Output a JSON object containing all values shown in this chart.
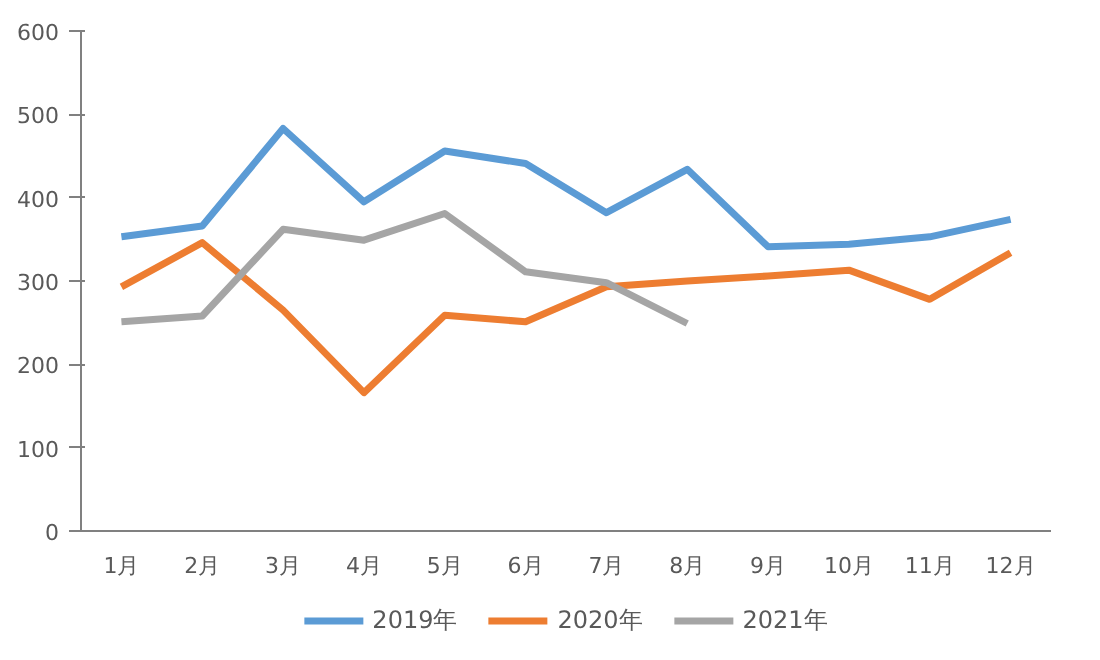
{
  "chart_data": {
    "type": "line",
    "categories": [
      "1月",
      "2月",
      "3月",
      "4月",
      "5月",
      "6月",
      "7月",
      "8月",
      "9月",
      "10月",
      "11月",
      "12月"
    ],
    "series": [
      {
        "name": "2019年",
        "color": "#5b9bd5",
        "values": [
          353,
          366,
          483,
          395,
          456,
          441,
          382,
          434,
          341,
          344,
          353,
          374
        ]
      },
      {
        "name": "2020年",
        "color": "#ed7d31",
        "values": [
          293,
          346,
          265,
          166,
          259,
          251,
          293,
          300,
          306,
          313,
          278,
          334
        ]
      },
      {
        "name": "2021年",
        "color": "#a5a5a5",
        "values": [
          251,
          258,
          362,
          349,
          381,
          311,
          298,
          249,
          null,
          null,
          null,
          null
        ]
      }
    ],
    "ylim": [
      0,
      600
    ],
    "yticks": [
      0,
      100,
      200,
      300,
      400,
      500,
      600
    ],
    "grid": false,
    "legend": "bottom",
    "marker": "none",
    "line_style": "solid"
  }
}
